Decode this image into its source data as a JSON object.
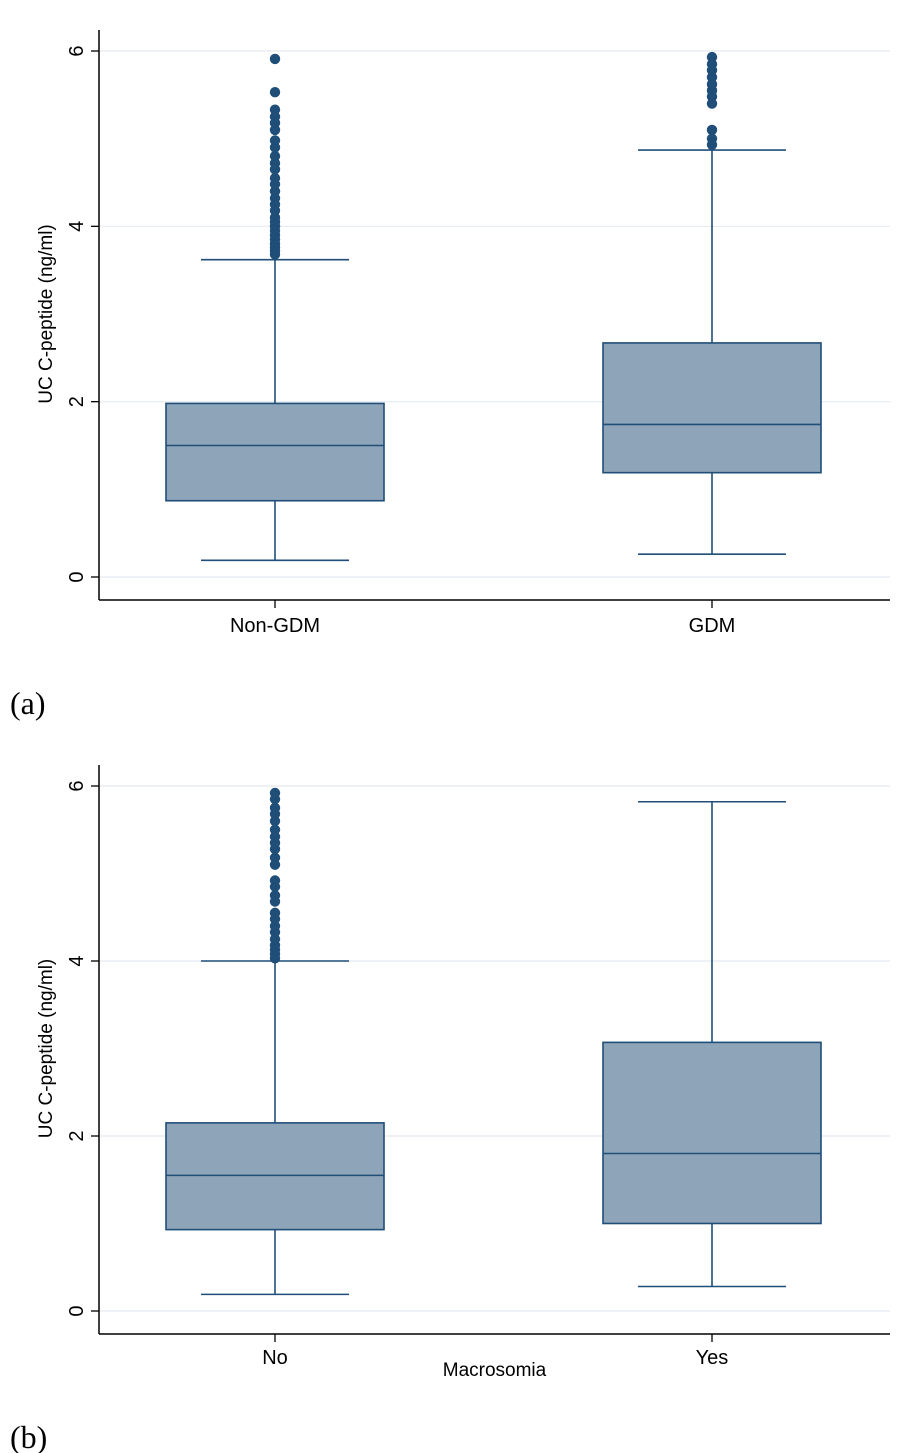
{
  "chart_data": [
    {
      "type": "box",
      "panel_label": "(a)",
      "ylabel": "UC C-peptide (ng/ml)",
      "xlabel": "",
      "ylim": [
        0,
        6.25
      ],
      "yticks": [
        "0",
        "2",
        "4",
        "6"
      ],
      "ytick_values": [
        0,
        2,
        4,
        6
      ],
      "grid": true,
      "colors": {
        "box_fill": "#8ea4b8",
        "line": "#1f4e79",
        "outlier": "#1f4e79",
        "grid": "#e4ebf2"
      },
      "categories": [
        "Non-GDM",
        "GDM"
      ],
      "boxes": [
        {
          "name": "Non-GDM",
          "whisker_low": 0.19,
          "q1": 0.87,
          "median": 1.5,
          "q3": 1.98,
          "whisker_high": 3.62,
          "outliers": [
            3.68,
            3.72,
            3.76,
            3.8,
            3.85,
            3.9,
            3.95,
            4.0,
            4.05,
            4.1,
            4.18,
            4.25,
            4.32,
            4.4,
            4.48,
            4.55,
            4.65,
            4.72,
            4.8,
            4.9,
            4.98,
            5.1,
            5.18,
            5.25,
            5.33,
            5.53,
            5.91
          ]
        },
        {
          "name": "GDM",
          "whisker_low": 0.26,
          "q1": 1.19,
          "median": 1.74,
          "q3": 2.67,
          "whisker_high": 4.87,
          "outliers": [
            4.93,
            5.0,
            5.1,
            5.4,
            5.48,
            5.55,
            5.62,
            5.7,
            5.78,
            5.85,
            5.93
          ]
        }
      ]
    },
    {
      "type": "box",
      "panel_label": "(b)",
      "ylabel": "UC C-peptide (ng/ml)",
      "xlabel": "Macrosomia",
      "ylim": [
        0,
        6.25
      ],
      "yticks": [
        "0",
        "2",
        "4",
        "6"
      ],
      "ytick_values": [
        0,
        2,
        4,
        6
      ],
      "grid": true,
      "colors": {
        "box_fill": "#8ea4b8",
        "line": "#1f4e79",
        "outlier": "#1f4e79",
        "grid": "#e4ebf2"
      },
      "categories": [
        "No",
        "Yes"
      ],
      "boxes": [
        {
          "name": "No",
          "whisker_low": 0.19,
          "q1": 0.93,
          "median": 1.55,
          "q3": 2.15,
          "whisker_high": 4.0,
          "outliers": [
            4.03,
            4.08,
            4.13,
            4.18,
            4.25,
            4.33,
            4.4,
            4.48,
            4.55,
            4.68,
            4.75,
            4.85,
            4.92,
            5.1,
            5.18,
            5.28,
            5.35,
            5.42,
            5.5,
            5.6,
            5.68,
            5.75,
            5.85,
            5.92
          ]
        },
        {
          "name": "Yes",
          "whisker_low": 0.28,
          "q1": 1.0,
          "median": 1.8,
          "q3": 3.07,
          "whisker_high": 5.82,
          "outliers": []
        }
      ]
    }
  ]
}
